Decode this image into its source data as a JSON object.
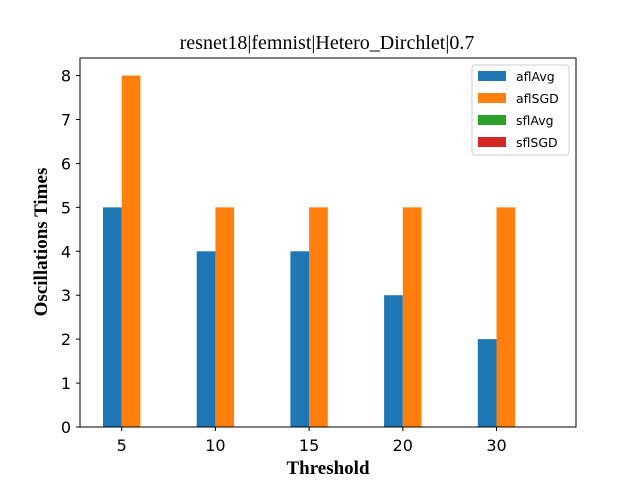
{
  "chart_data": {
    "type": "bar",
    "title": "resnet18|femnist|Hetero_Dirchlet|0.7",
    "xlabel": "Threshold",
    "ylabel": "Oscillations Times",
    "categories": [
      "5",
      "10",
      "15",
      "20",
      "30"
    ],
    "ylim": [
      0,
      8.4
    ],
    "yticks": [
      0,
      1,
      2,
      3,
      4,
      5,
      6,
      7,
      8
    ],
    "grid": false,
    "legend_position": "top-right",
    "series": [
      {
        "name": "aflAvg",
        "color": "#1f77b4",
        "values": [
          5,
          4,
          4,
          3,
          2
        ]
      },
      {
        "name": "aflSGD",
        "color": "#ff7f0e",
        "values": [
          8,
          5,
          5,
          5,
          5
        ]
      },
      {
        "name": "sflAvg",
        "color": "#2ca02c",
        "values": [
          0,
          0,
          0,
          0,
          0
        ]
      },
      {
        "name": "sflSGD",
        "color": "#d62728",
        "values": [
          0,
          0,
          0,
          0,
          0
        ]
      }
    ]
  }
}
